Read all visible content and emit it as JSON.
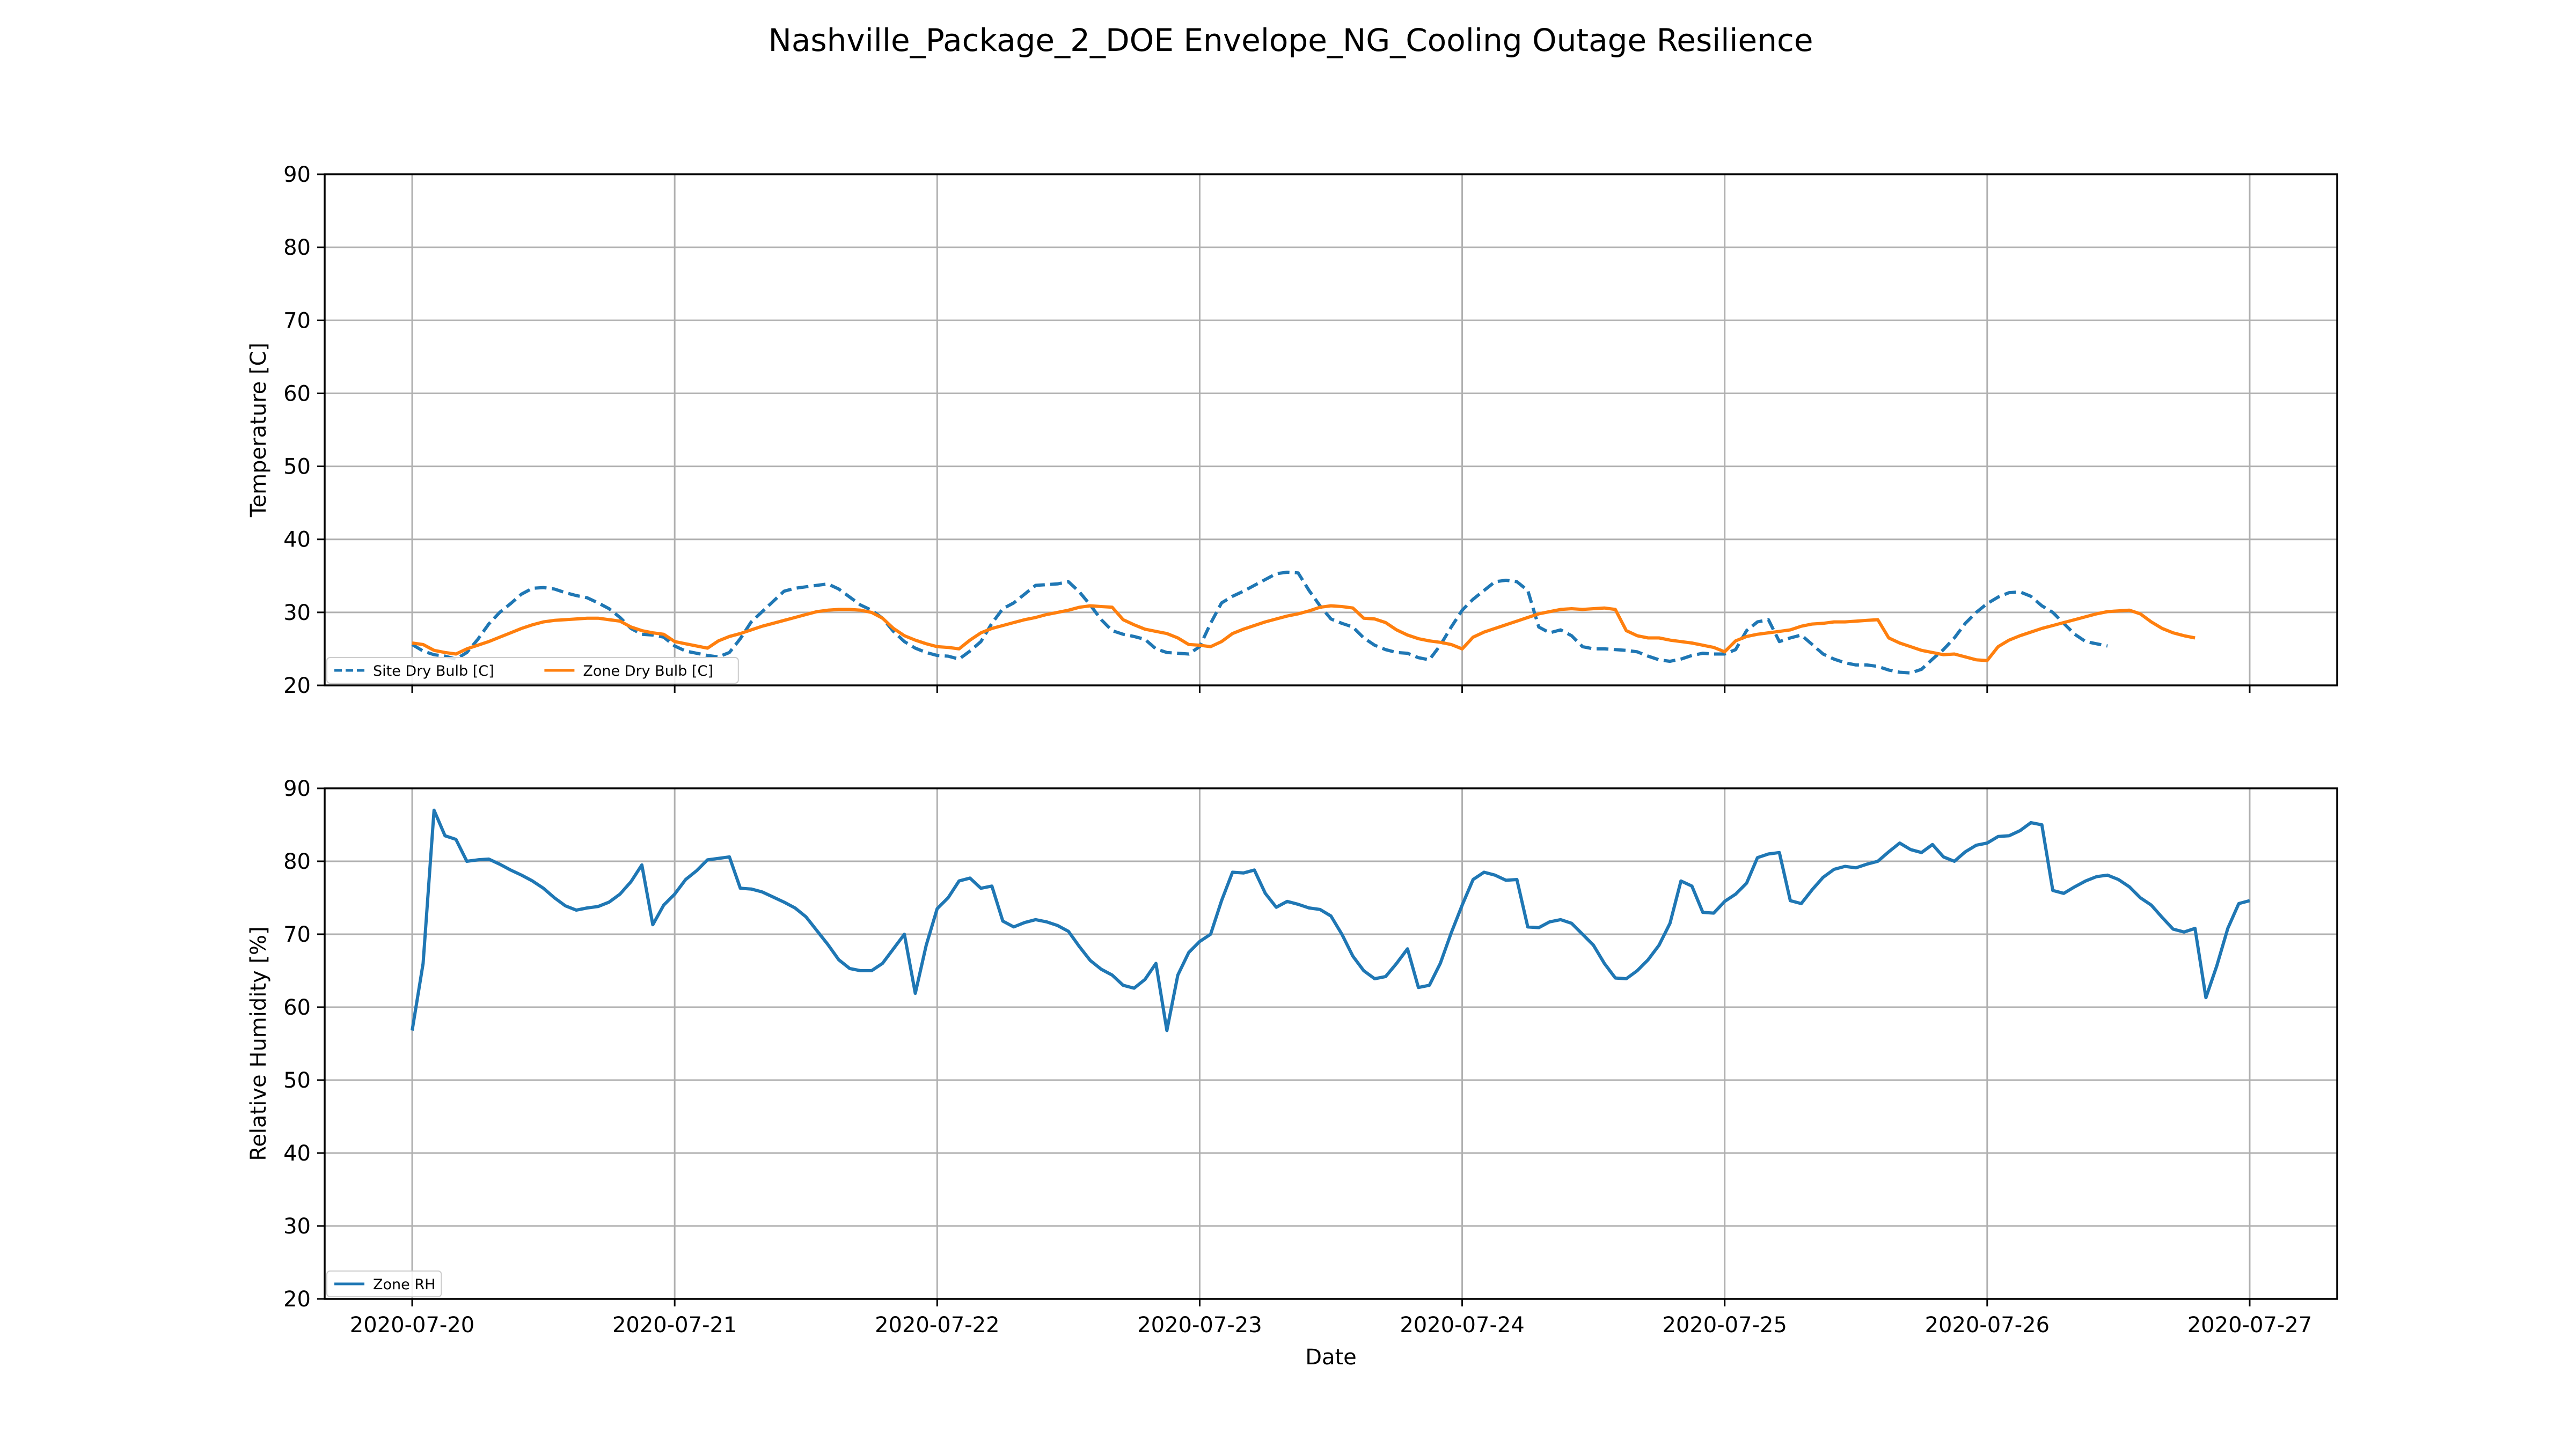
{
  "title": "Nashville_Package_2_DOE Envelope_NG_Cooling Outage Resilience",
  "colors": {
    "site": "#1f77b4",
    "zone": "#ff7f0e",
    "rh": "#1f77b4"
  },
  "chart_data": [
    {
      "type": "line",
      "name": "temperature",
      "ylabel": "Temperature [C]",
      "ylim": [
        20,
        90
      ],
      "yticks": [
        20,
        30,
        40,
        50,
        60,
        70,
        80,
        90
      ],
      "x_start": "2020-07-20T00:00",
      "x_step_hours": 1,
      "xlim": [
        "2020-07-19T16:00",
        "2020-07-27T08:00"
      ],
      "x_ticks": [
        "2020-07-20",
        "2020-07-21",
        "2020-07-22",
        "2020-07-23",
        "2020-07-24",
        "2020-07-25",
        "2020-07-26",
        "2020-07-27"
      ],
      "grid": true,
      "legend": "lower-left",
      "series": [
        {
          "name": "Site Dry Bulb [C]",
          "style": "dashed",
          "color": "#1f77b4",
          "values": [
            25.6,
            24.7,
            24.2,
            24.0,
            23.6,
            24.5,
            26.3,
            28.4,
            30.0,
            31.2,
            32.5,
            33.3,
            33.4,
            33.2,
            32.7,
            32.3,
            32.0,
            31.3,
            30.5,
            29.3,
            27.8,
            27.0,
            26.9,
            26.6,
            25.4,
            24.7,
            24.4,
            24.1,
            23.9,
            24.5,
            26.4,
            28.7,
            30.1,
            31.5,
            32.9,
            33.3,
            33.5,
            33.7,
            33.9,
            33.2,
            32.1,
            31.0,
            30.3,
            29.2,
            27.4,
            26.0,
            25.1,
            24.5,
            24.1,
            24.0,
            23.6,
            24.7,
            26.0,
            28.5,
            30.5,
            31.3,
            32.5,
            33.7,
            33.8,
            33.9,
            34.2,
            32.8,
            31.0,
            29.0,
            27.5,
            27.0,
            26.7,
            26.3,
            25.0,
            24.5,
            24.4,
            24.3,
            25.3,
            28.5,
            31.3,
            32.2,
            32.9,
            33.7,
            34.5,
            35.3,
            35.5,
            35.4,
            33.0,
            30.9,
            29.1,
            28.5,
            28.0,
            26.5,
            25.5,
            24.9,
            24.5,
            24.4,
            23.8,
            23.5,
            25.5,
            28.0,
            30.3,
            31.8,
            33.0,
            34.2,
            34.4,
            34.2,
            33.0,
            28.0,
            27.2,
            27.6,
            26.8,
            25.3,
            25.0,
            25.0,
            24.9,
            24.8,
            24.6,
            24.0,
            23.5,
            23.3,
            23.6,
            24.1,
            24.4,
            24.3,
            24.3,
            24.9,
            27.5,
            28.7,
            29.0,
            26.0,
            26.5,
            26.9,
            25.6,
            24.3,
            23.6,
            23.1,
            22.8,
            22.8,
            22.6,
            22.1,
            21.8,
            21.7,
            22.2,
            23.6,
            24.9,
            26.5,
            28.5,
            30.0,
            31.2,
            32.1,
            32.7,
            32.8,
            32.2,
            30.9,
            30.0,
            28.5,
            27.0,
            26.0,
            25.7,
            25.4
          ]
        },
        {
          "name": "Zone Dry Bulb [C]",
          "style": "solid",
          "color": "#ff7f0e",
          "values": [
            25.8,
            25.6,
            24.8,
            24.5,
            24.3,
            25.0,
            25.5,
            26.0,
            26.6,
            27.2,
            27.8,
            28.3,
            28.7,
            28.9,
            29.0,
            29.1,
            29.2,
            29.2,
            29.0,
            28.8,
            28.0,
            27.5,
            27.2,
            27.0,
            26.0,
            25.7,
            25.4,
            25.1,
            26.1,
            26.7,
            27.1,
            27.6,
            28.1,
            28.5,
            28.9,
            29.3,
            29.7,
            30.1,
            30.3,
            30.4,
            30.4,
            30.3,
            30.0,
            29.2,
            27.8,
            26.8,
            26.2,
            25.7,
            25.3,
            25.2,
            25.0,
            26.2,
            27.2,
            27.8,
            28.2,
            28.6,
            29.0,
            29.3,
            29.7,
            30.0,
            30.3,
            30.7,
            30.9,
            30.8,
            30.7,
            29.0,
            28.3,
            27.7,
            27.4,
            27.1,
            26.5,
            25.6,
            25.5,
            25.3,
            26.0,
            27.1,
            27.7,
            28.2,
            28.7,
            29.1,
            29.5,
            29.8,
            30.2,
            30.7,
            30.9,
            30.8,
            30.6,
            29.2,
            29.1,
            28.6,
            27.6,
            26.9,
            26.4,
            26.1,
            25.9,
            25.6,
            25.0,
            26.6,
            27.3,
            27.8,
            28.3,
            28.8,
            29.3,
            29.8,
            30.1,
            30.4,
            30.5,
            30.4,
            30.5,
            30.6,
            30.4,
            27.5,
            26.8,
            26.5,
            26.5,
            26.2,
            26.0,
            25.8,
            25.5,
            25.2,
            24.6,
            26.1,
            26.7,
            27.0,
            27.2,
            27.4,
            27.6,
            28.1,
            28.4,
            28.5,
            28.7,
            28.7,
            28.8,
            28.9,
            29.0,
            26.5,
            25.8,
            25.3,
            24.8,
            24.5,
            24.2,
            24.3,
            23.9,
            23.5,
            23.4,
            25.3,
            26.2,
            26.8,
            27.3,
            27.8,
            28.2,
            28.6,
            29.0,
            29.4,
            29.8,
            30.1,
            30.2,
            30.3,
            29.8,
            28.7,
            27.8,
            27.2,
            26.8,
            26.5
          ]
        }
      ]
    },
    {
      "type": "line",
      "name": "humidity",
      "ylabel": "Relative Humidity [%]",
      "xlabel": "Date",
      "ylim": [
        20,
        90
      ],
      "yticks": [
        20,
        30,
        40,
        50,
        60,
        70,
        80,
        90
      ],
      "x_start": "2020-07-20T00:00",
      "x_step_hours": 1,
      "xlim": [
        "2020-07-19T16:00",
        "2020-07-27T08:00"
      ],
      "x_ticks": [
        "2020-07-20",
        "2020-07-21",
        "2020-07-22",
        "2020-07-23",
        "2020-07-24",
        "2020-07-25",
        "2020-07-26",
        "2020-07-27"
      ],
      "grid": true,
      "legend": "lower-left",
      "series": [
        {
          "name": "Zone RH",
          "style": "solid",
          "color": "#1f77b4",
          "values": [
            56.8,
            66.0,
            87.0,
            83.5,
            83.0,
            80.0,
            80.2,
            80.3,
            79.6,
            78.8,
            78.1,
            77.3,
            76.3,
            75.0,
            73.9,
            73.3,
            73.6,
            73.8,
            74.4,
            75.5,
            77.2,
            79.5,
            71.3,
            74.0,
            75.5,
            77.5,
            78.7,
            80.2,
            80.4,
            80.6,
            76.3,
            76.2,
            75.8,
            75.1,
            74.4,
            73.6,
            72.4,
            70.5,
            68.6,
            66.5,
            65.3,
            65.0,
            65.0,
            66.0,
            68.0,
            70.0,
            61.9,
            68.5,
            73.5,
            75.0,
            77.3,
            77.7,
            76.3,
            76.6,
            71.8,
            71.0,
            71.6,
            72.0,
            71.7,
            71.2,
            70.4,
            68.3,
            66.4,
            65.2,
            64.4,
            63.0,
            62.6,
            63.8,
            66.0,
            56.8,
            64.4,
            67.5,
            69.0,
            70.0,
            74.6,
            78.5,
            78.4,
            78.8,
            75.6,
            73.7,
            74.5,
            74.1,
            73.6,
            73.4,
            72.5,
            70.0,
            67.0,
            65.0,
            63.9,
            64.2,
            66.0,
            68.0,
            62.7,
            63.0,
            66.0,
            70.2,
            74.0,
            77.5,
            78.5,
            78.1,
            77.4,
            77.5,
            71.0,
            70.9,
            71.7,
            72.0,
            71.5,
            70.0,
            68.5,
            66.0,
            64.0,
            63.9,
            65.0,
            66.5,
            68.5,
            71.5,
            77.3,
            76.6,
            73.0,
            72.9,
            74.5,
            75.5,
            77.0,
            80.5,
            81.0,
            81.2,
            74.6,
            74.2,
            76.1,
            77.8,
            78.9,
            79.3,
            79.1,
            79.6,
            80.0,
            81.3,
            82.5,
            81.6,
            81.2,
            82.3,
            80.6,
            80.0,
            81.3,
            82.2,
            82.5,
            83.4,
            83.5,
            84.2,
            85.3,
            85.0,
            76.0,
            75.6,
            76.5,
            77.3,
            77.9,
            78.1,
            77.5,
            76.5,
            75.0,
            74.0,
            72.3,
            70.7,
            70.3,
            70.8,
            61.3,
            65.7,
            70.8,
            74.2,
            74.6
          ]
        }
      ]
    }
  ]
}
